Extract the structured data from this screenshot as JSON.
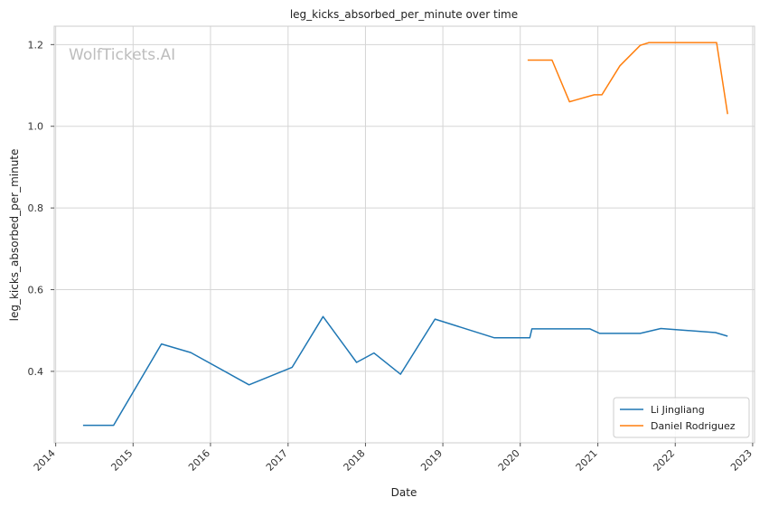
{
  "chart_data": {
    "type": "line",
    "title": "leg_kicks_absorbed_per_minute over time",
    "xlabel": "Date",
    "ylabel": "leg_kicks_absorbed_per_minute",
    "x_ticks": [
      "2014",
      "2015",
      "2016",
      "2017",
      "2018",
      "2019",
      "2020",
      "2021",
      "2022",
      "2023"
    ],
    "y_ticks": [
      "0.4",
      "0.6",
      "0.8",
      "1.0",
      "1.2"
    ],
    "xlim": [
      "2013-12-25",
      "2023-01-10"
    ],
    "ylim": [
      0.225,
      1.245
    ],
    "grid": true,
    "legend_position": "bottom-right",
    "watermark": "WolfTickets.AI",
    "series": [
      {
        "name": "Li Jingliang",
        "color": "#1f77b4",
        "points": [
          [
            "2014-05-10",
            0.268
          ],
          [
            "2014-10-01",
            0.268
          ],
          [
            "2015-05-15",
            0.467
          ],
          [
            "2015-09-30",
            0.446
          ],
          [
            "2016-07-01",
            0.367
          ],
          [
            "2017-01-20",
            0.41
          ],
          [
            "2017-06-15",
            0.534
          ],
          [
            "2017-11-20",
            0.422
          ],
          [
            "2018-02-10",
            0.445
          ],
          [
            "2018-06-15",
            0.393
          ],
          [
            "2018-11-25",
            0.528
          ],
          [
            "2019-09-01",
            0.482
          ],
          [
            "2020-02-15",
            0.482
          ],
          [
            "2020-02-25",
            0.504
          ],
          [
            "2020-11-25",
            0.504
          ],
          [
            "2021-01-10",
            0.493
          ],
          [
            "2021-07-20",
            0.493
          ],
          [
            "2021-10-25",
            0.505
          ],
          [
            "2022-07-10",
            0.495
          ],
          [
            "2022-09-05",
            0.486
          ]
        ]
      },
      {
        "name": "Daniel Rodriguez",
        "color": "#ff7f0e",
        "points": [
          [
            "2020-02-05",
            1.162
          ],
          [
            "2020-05-30",
            1.162
          ],
          [
            "2020-08-20",
            1.06
          ],
          [
            "2020-12-15",
            1.077
          ],
          [
            "2021-01-20",
            1.077
          ],
          [
            "2021-04-15",
            1.148
          ],
          [
            "2021-07-20",
            1.198
          ],
          [
            "2021-08-30",
            1.205
          ],
          [
            "2022-07-15",
            1.205
          ],
          [
            "2022-09-05",
            1.03
          ]
        ]
      }
    ]
  }
}
